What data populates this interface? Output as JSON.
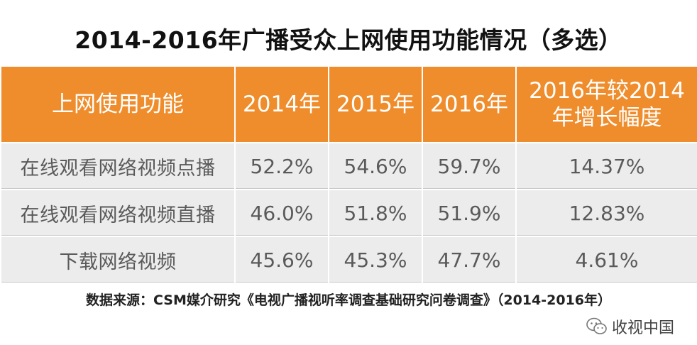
{
  "chart_data": {
    "type": "table",
    "title": "2014-2016年广播受众上网使用功能情况（多选）",
    "columns": [
      "上网使用功能",
      "2014年",
      "2015年",
      "2016年",
      "2016年较2014年增长幅度"
    ],
    "rows": [
      {
        "label": "在线观看网络视频点播",
        "values": [
          "52.2%",
          "54.6%",
          "59.7%",
          "14.37%"
        ]
      },
      {
        "label": "在线观看网络视频直播",
        "values": [
          "46.0%",
          "51.8%",
          "51.9%",
          "12.83%"
        ]
      },
      {
        "label": "下载网络视频",
        "values": [
          "45.6%",
          "45.3%",
          "47.7%",
          "4.61%"
        ]
      }
    ],
    "source": "数据来源：CSM媒介研究《电视广播视听率调查基础研究问卷调查》（2014-2016年）"
  },
  "watermark": {
    "text": "收视中国",
    "icon": "wechat-icon"
  },
  "colors": {
    "header_bg": "#ef8d2c",
    "row_bg": "#ececec"
  }
}
